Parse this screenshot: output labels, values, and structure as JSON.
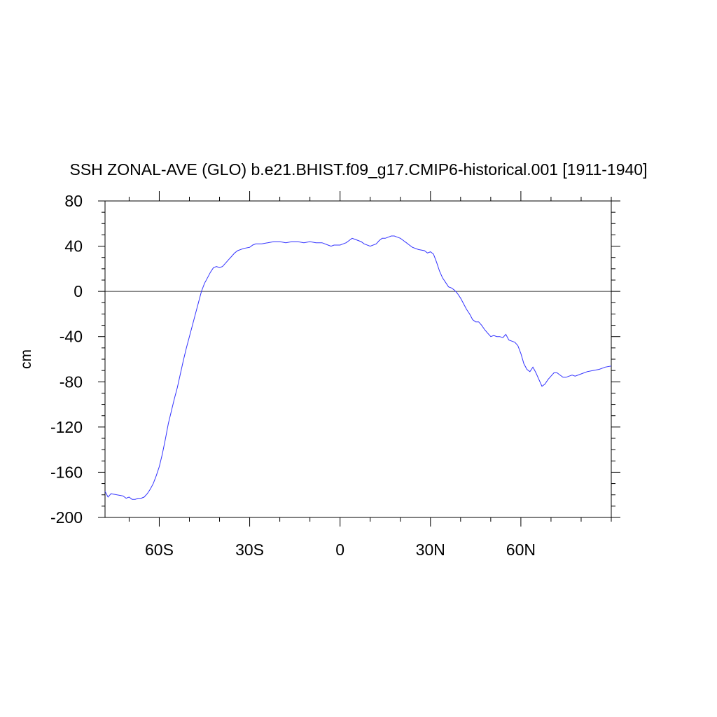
{
  "chart_data": {
    "type": "line",
    "title": "SSH ZONAL-AVE (GLO) b.e21.BHIST.f09_g17.CMIP6-historical.001 [1911-1940]",
    "xlabel": "",
    "ylabel": "cm",
    "xlim": [
      -78,
      90
    ],
    "ylim": [
      -200,
      80
    ],
    "x_ticks": [
      {
        "value": -60,
        "label": "60S"
      },
      {
        "value": -30,
        "label": "30S"
      },
      {
        "value": 0,
        "label": "0"
      },
      {
        "value": 30,
        "label": "30N"
      },
      {
        "value": 60,
        "label": "60N"
      }
    ],
    "y_ticks": [
      {
        "value": 80,
        "label": "80"
      },
      {
        "value": 40,
        "label": "40"
      },
      {
        "value": 0,
        "label": "0"
      },
      {
        "value": -40,
        "label": "-40"
      },
      {
        "value": -80,
        "label": "-80"
      },
      {
        "value": -120,
        "label": "-120"
      },
      {
        "value": -160,
        "label": "-160"
      },
      {
        "value": -200,
        "label": "-200"
      }
    ],
    "reference_line_y": 0,
    "grid": false,
    "colors": {
      "series": "#3333ff",
      "axis": "#000000",
      "reference": "#000000"
    },
    "series": [
      {
        "x": [
          -78,
          -77,
          -76,
          -74,
          -72,
          -71,
          -70,
          -69,
          -68,
          -67,
          -66,
          -65,
          -64,
          -63,
          -62,
          -61,
          -60,
          -59,
          -58,
          -57,
          -56,
          -55,
          -54,
          -53,
          -52,
          -51,
          -50,
          -49,
          -48,
          -47,
          -46,
          -45,
          -44,
          -43,
          -42,
          -41,
          -40,
          -39,
          -38,
          -37,
          -36,
          -35,
          -34,
          -32,
          -30,
          -29,
          -28,
          -26,
          -24,
          -22,
          -20,
          -18,
          -16,
          -14,
          -12,
          -10,
          -8,
          -6,
          -4,
          -3,
          -2,
          -1,
          0,
          1,
          2,
          3,
          4,
          5,
          6,
          7,
          8,
          10,
          12,
          13,
          14,
          15,
          16,
          17,
          18,
          19,
          20,
          21,
          22,
          23,
          24,
          26,
          28,
          29,
          30,
          31,
          32,
          33,
          34,
          35,
          36,
          37,
          38,
          39,
          40,
          41,
          42,
          43,
          44,
          45,
          46,
          47,
          48,
          49,
          50,
          51,
          52,
          53,
          54,
          55,
          56,
          57,
          58,
          59,
          60,
          61,
          62,
          63,
          64,
          65,
          66,
          67,
          68,
          69,
          70,
          71,
          72,
          73,
          74,
          75,
          76,
          77,
          78,
          80,
          82,
          84,
          86,
          88,
          90
        ],
        "y": [
          -177,
          -182,
          -179,
          -180,
          -181,
          -183,
          -182,
          -184,
          -184,
          -183,
          -183,
          -182,
          -179,
          -175,
          -170,
          -163,
          -155,
          -144,
          -131,
          -117,
          -106,
          -95,
          -85,
          -73,
          -61,
          -50,
          -40,
          -30,
          -20,
          -10,
          0,
          7,
          12,
          17,
          21,
          22,
          21,
          22,
          25,
          28,
          31,
          34,
          36,
          38,
          39,
          41,
          42,
          42,
          43,
          44,
          44,
          43,
          44,
          44,
          43,
          44,
          43,
          43,
          41,
          40,
          41,
          41,
          41,
          42,
          43,
          45,
          47,
          46,
          45,
          44,
          42,
          40,
          42,
          45,
          47,
          47,
          48,
          49,
          49,
          48,
          47,
          45,
          43,
          41,
          39,
          37,
          36,
          34,
          35,
          33,
          26,
          18,
          12,
          8,
          4,
          3,
          1,
          -2,
          -6,
          -11,
          -16,
          -20,
          -25,
          -27,
          -27,
          -30,
          -34,
          -37,
          -40,
          -39,
          -40,
          -40,
          -41,
          -38,
          -43,
          -44,
          -45,
          -48,
          -55,
          -64,
          -69,
          -71,
          -67,
          -72,
          -78,
          -84,
          -82,
          -78,
          -75,
          -72,
          -72,
          -74,
          -76,
          -76,
          -75,
          -74,
          -75,
          -73,
          -71,
          -70,
          -69,
          -67,
          -66
        ]
      }
    ]
  }
}
